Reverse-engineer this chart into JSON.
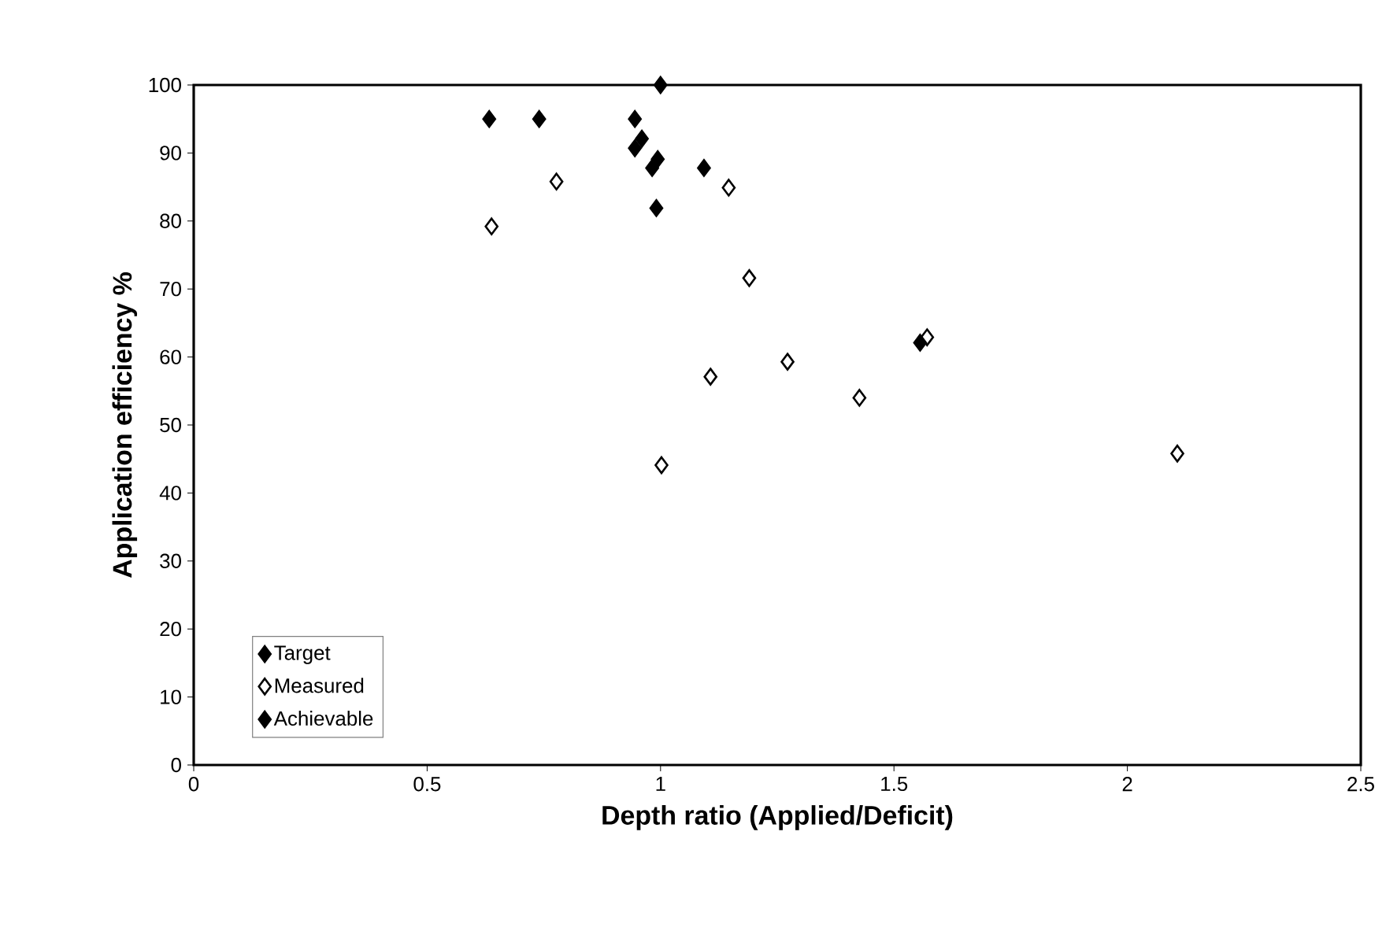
{
  "chart_data": {
    "type": "scatter",
    "xlabel": "Depth ratio (Applied/Deficit)",
    "ylabel": "Application efficiency %",
    "xlim": [
      0,
      2.5
    ],
    "xticks": [
      0,
      0.5,
      1,
      1.5,
      2,
      2.5
    ],
    "ylim": [
      0,
      100
    ],
    "yticks": [
      0,
      10,
      20,
      30,
      40,
      50,
      60,
      70,
      80,
      90,
      100
    ],
    "legend": "bottom left",
    "grid": false,
    "marker": "diamond",
    "series": [
      {
        "name": "Target",
        "color": "#000000",
        "x": [
          1.0
        ],
        "values": [
          100
        ]
      },
      {
        "name": "Measured",
        "color": "#ffffff",
        "x": [
          0.777,
          0.638,
          1.146,
          1.19,
          1.272,
          1.107,
          1.426,
          1.002,
          1.571,
          2.107
        ],
        "values": [
          85.8,
          79.2,
          84.9,
          71.6,
          59.3,
          57.1,
          54.0,
          44.1,
          62.9,
          45.8
        ]
      },
      {
        "name": "Achievable",
        "color": "#000000",
        "x": [
          0.633,
          0.74,
          0.945,
          0.96,
          0.945,
          0.994,
          0.982,
          1.093,
          0.991,
          1.556
        ],
        "values": [
          95,
          95,
          95,
          92.1,
          90.7,
          89.1,
          87.8,
          87.8,
          81.9,
          62.1
        ]
      }
    ]
  }
}
